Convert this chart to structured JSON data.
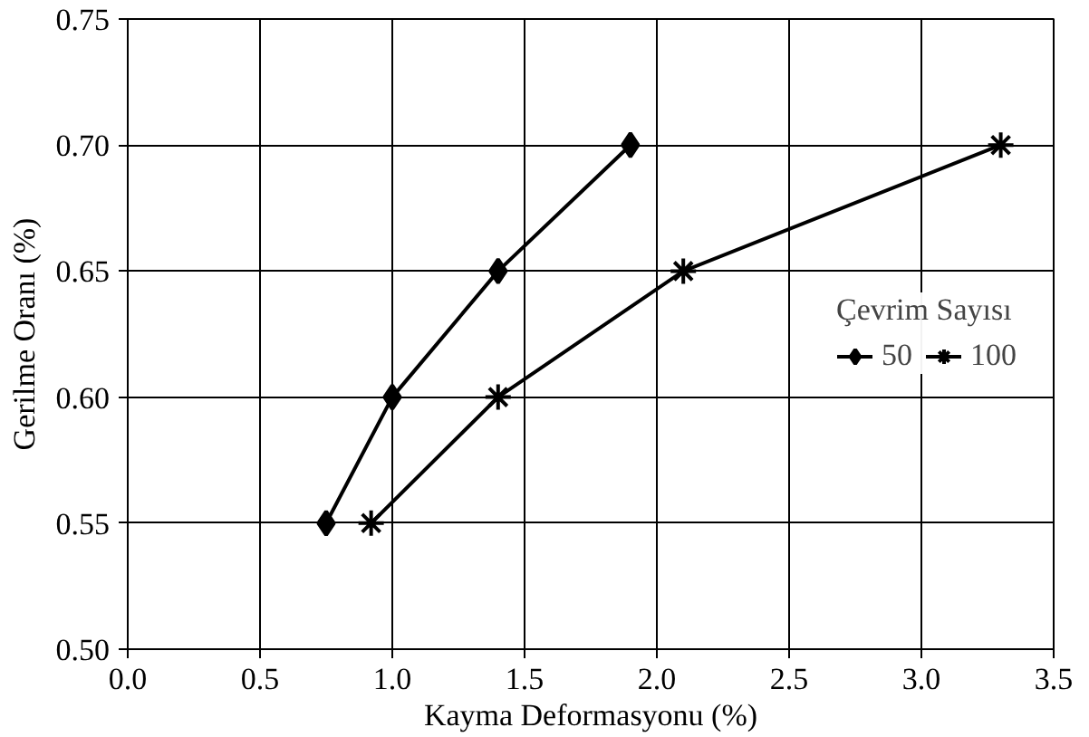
{
  "chart_data": {
    "type": "line",
    "xlabel": "Kayma Deformasyonu (%)",
    "ylabel": "Gerilme Oranı (%)",
    "legend_title": "Çevrim Sayısı",
    "legend": "right",
    "series": [
      {
        "name": "50",
        "color": "#000000",
        "marker": "diamond",
        "x": [
          0.75,
          1.0,
          1.4,
          1.9
        ],
        "values": [
          0.55,
          0.6,
          0.65,
          0.7
        ]
      },
      {
        "name": "100",
        "color": "#000000",
        "marker": "cross",
        "x": [
          0.92,
          1.4,
          2.1,
          3.3
        ],
        "values": [
          0.55,
          0.6,
          0.65,
          0.7
        ]
      }
    ],
    "xlim": [
      0,
      3.5
    ],
    "ylim": [
      0.5,
      0.75
    ],
    "xticks": [
      {
        "value": 0,
        "label": "0.0"
      },
      0.5,
      {
        "value": 1,
        "label": "1.0"
      },
      1.5,
      {
        "value": 2,
        "label": "2.0"
      },
      2.5,
      {
        "value": 3,
        "label": "3.0"
      },
      3.5
    ],
    "yticks": [
      {
        "value": 0.5,
        "label": "0.50"
      },
      0.55,
      {
        "value": 0.6,
        "label": "0.60"
      },
      0.65,
      {
        "value": 0.7,
        "label": "0.70"
      },
      0.75
    ],
    "grid": true,
    "line_style": "solid"
  }
}
